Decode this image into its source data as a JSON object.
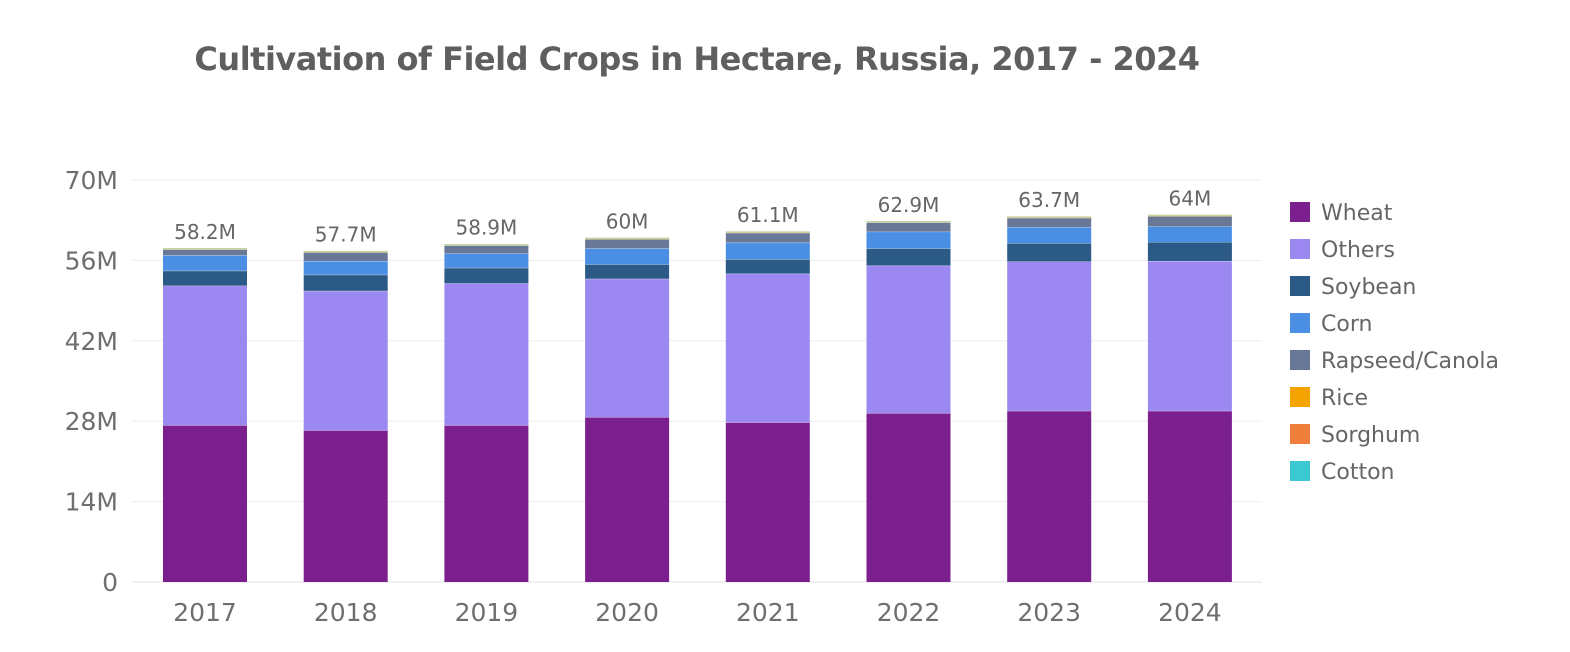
{
  "chart_data": {
    "type": "bar",
    "stacked": true,
    "title": "Cultivation of Field Crops in Hectare, Russia, 2017 - 2024",
    "xlabel": "",
    "ylabel": "",
    "categories": [
      "2017",
      "2018",
      "2019",
      "2020",
      "2021",
      "2022",
      "2023",
      "2024"
    ],
    "ylim": [
      0,
      70000000
    ],
    "yticks": [
      0,
      14000000,
      28000000,
      42000000,
      56000000,
      70000000
    ],
    "ytick_labels": [
      "0",
      "14M",
      "28M",
      "42M",
      "56M",
      "70M"
    ],
    "grid": true,
    "legend_position": "right",
    "totals": [
      58200000,
      57700000,
      58900000,
      60000000,
      61100000,
      62900000,
      63700000,
      64000000
    ],
    "total_labels": [
      "58.2M",
      "57.7M",
      "58.9M",
      "60M",
      "61.1M",
      "62.9M",
      "63.7M",
      "64M"
    ],
    "series": [
      {
        "name": "Wheat",
        "color": "#7b1f8f",
        "values": [
          27300000,
          26400000,
          27300000,
          28700000,
          27800000,
          29400000,
          29800000,
          29800000
        ]
      },
      {
        "name": "Others",
        "color": "#9b88f0",
        "values": [
          24300000,
          24300000,
          24700000,
          24100000,
          25900000,
          25700000,
          26000000,
          26100000
        ]
      },
      {
        "name": "Soybean",
        "color": "#2a5a85",
        "values": [
          2600000,
          2800000,
          2700000,
          2500000,
          2500000,
          3000000,
          3200000,
          3300000
        ]
      },
      {
        "name": "Corn",
        "color": "#4a8fe3",
        "values": [
          2700000,
          2400000,
          2500000,
          2800000,
          2900000,
          2900000,
          2800000,
          2700000
        ]
      },
      {
        "name": "Rapseed/Canola",
        "color": "#6a7898",
        "values": [
          1000000,
          1500000,
          1400000,
          1600000,
          1700000,
          1600000,
          1600000,
          1800000
        ]
      },
      {
        "name": "Rice",
        "color": "#f5a300",
        "values": [
          190000,
          180000,
          180000,
          190000,
          190000,
          190000,
          190000,
          190000
        ]
      },
      {
        "name": "Sorghum",
        "color": "#f07f3c",
        "values": [
          40000,
          40000,
          40000,
          40000,
          40000,
          40000,
          40000,
          40000
        ]
      },
      {
        "name": "Cotton",
        "color": "#3cc8d0",
        "values": [
          0,
          0,
          0,
          0,
          0,
          0,
          0,
          0
        ]
      }
    ],
    "top_cap_color": "#c8d4a0",
    "top_cap_value": 40000
  }
}
